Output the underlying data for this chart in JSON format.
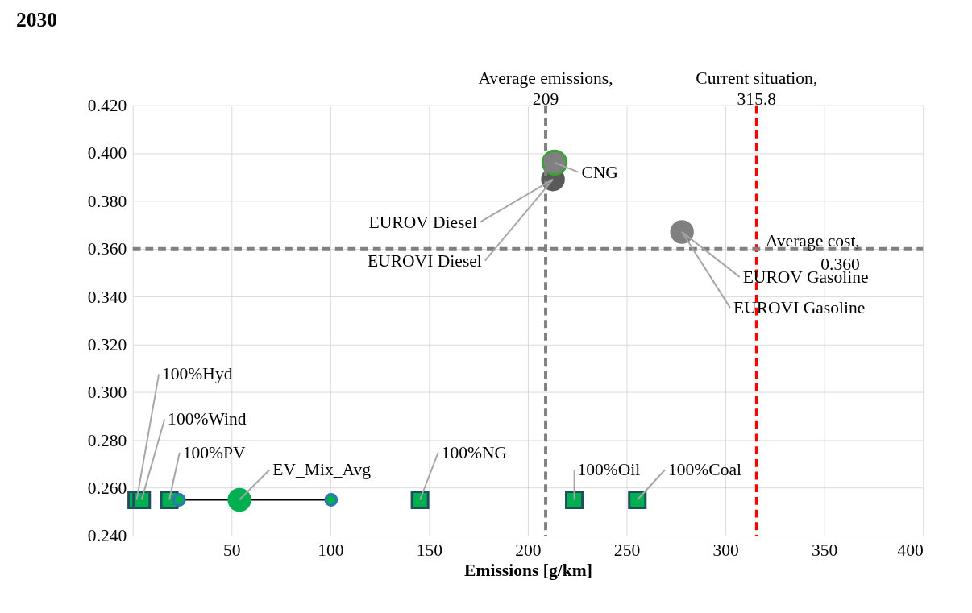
{
  "chart_data": {
    "type": "scatter",
    "title": "2030",
    "xlabel": "Emissions [g/km]",
    "xlim": [
      0,
      400
    ],
    "xticks": [
      50,
      100,
      150,
      200,
      250,
      300,
      350,
      400
    ],
    "ylim": [
      0.24,
      0.42
    ],
    "yticks": [
      {
        "value": 0.24,
        "label": "0.240"
      },
      {
        "value": 0.26,
        "label": "0.260"
      },
      {
        "value": 0.28,
        "label": "0.280"
      },
      {
        "value": 0.3,
        "label": "0.300"
      },
      {
        "value": 0.32,
        "label": "0.320"
      },
      {
        "value": 0.34,
        "label": "0.340"
      },
      {
        "value": 0.36,
        "label": "0.360"
      },
      {
        "value": 0.38,
        "label": "0.380"
      },
      {
        "value": 0.4,
        "label": "0.400"
      },
      {
        "value": 0.42,
        "label": "0.420"
      }
    ],
    "grid": true,
    "legend": false,
    "series": [
      {
        "marker": "square",
        "color": "#00b050",
        "x": [
          2,
          4.5,
          18.5,
          145.4,
          223.5,
          255.4
        ],
        "values": [
          0.255,
          0.255,
          0.255,
          0.255,
          0.255,
          0.255
        ]
      },
      {
        "type": "line",
        "marker": "circle",
        "color": "#00b050",
        "x": [
          23.5,
          100.4
        ],
        "values": [
          0.255,
          0.255
        ]
      },
      {
        "marker": "circle",
        "color": "#00b050",
        "x": [
          54
        ],
        "values": [
          0.255
        ]
      },
      {
        "marker": "circle",
        "color": "#595959",
        "x": [
          212.7
        ],
        "values": [
          0.389
        ]
      },
      {
        "marker": "circle",
        "color": "#808080",
        "x": [
          213.5
        ],
        "values": [
          0.396
        ]
      },
      {
        "marker": "circle",
        "color": "#808080",
        "x": [
          278
        ],
        "values": [
          0.367
        ]
      }
    ],
    "ref_lines": [
      {
        "axis": "x",
        "value": 209,
        "label": "Average emissions, 209",
        "color": "#808080",
        "line_style": "dashed"
      },
      {
        "axis": "x",
        "value": 315.8,
        "label": "Current situation, 315.8",
        "color": "#ff0000",
        "line_style": "dashed"
      },
      {
        "axis": "y",
        "value": 0.36,
        "label": "Average cost, 0.360",
        "color": "#808080",
        "line_style": "dashed"
      }
    ],
    "annotations": [
      {
        "text": "CNG",
        "x": 213.5,
        "y": 0.396
      },
      {
        "text": "EUROV Diesel",
        "x": 212.7,
        "y": 0.389
      },
      {
        "text": "EUROVI Diesel",
        "x": 212.7,
        "y": 0.389
      },
      {
        "text": "EUROV Gasoline",
        "x": 278,
        "y": 0.367
      },
      {
        "text": "EUROVI Gasoline",
        "x": 278,
        "y": 0.367
      },
      {
        "text": "100%Hyd",
        "x": 2,
        "y": 0.255
      },
      {
        "text": "100%Wind",
        "x": 4.5,
        "y": 0.255
      },
      {
        "text": "100%PV",
        "x": 18.5,
        "y": 0.255
      },
      {
        "text": "EV_Mix_Avg",
        "x": 54,
        "y": 0.255
      },
      {
        "text": "100%NG",
        "x": 145.4,
        "y": 0.255
      },
      {
        "text": "100%Oil",
        "x": 223.5,
        "y": 0.255
      },
      {
        "text": "100%Coal",
        "x": 255.4,
        "y": 0.255
      }
    ]
  }
}
